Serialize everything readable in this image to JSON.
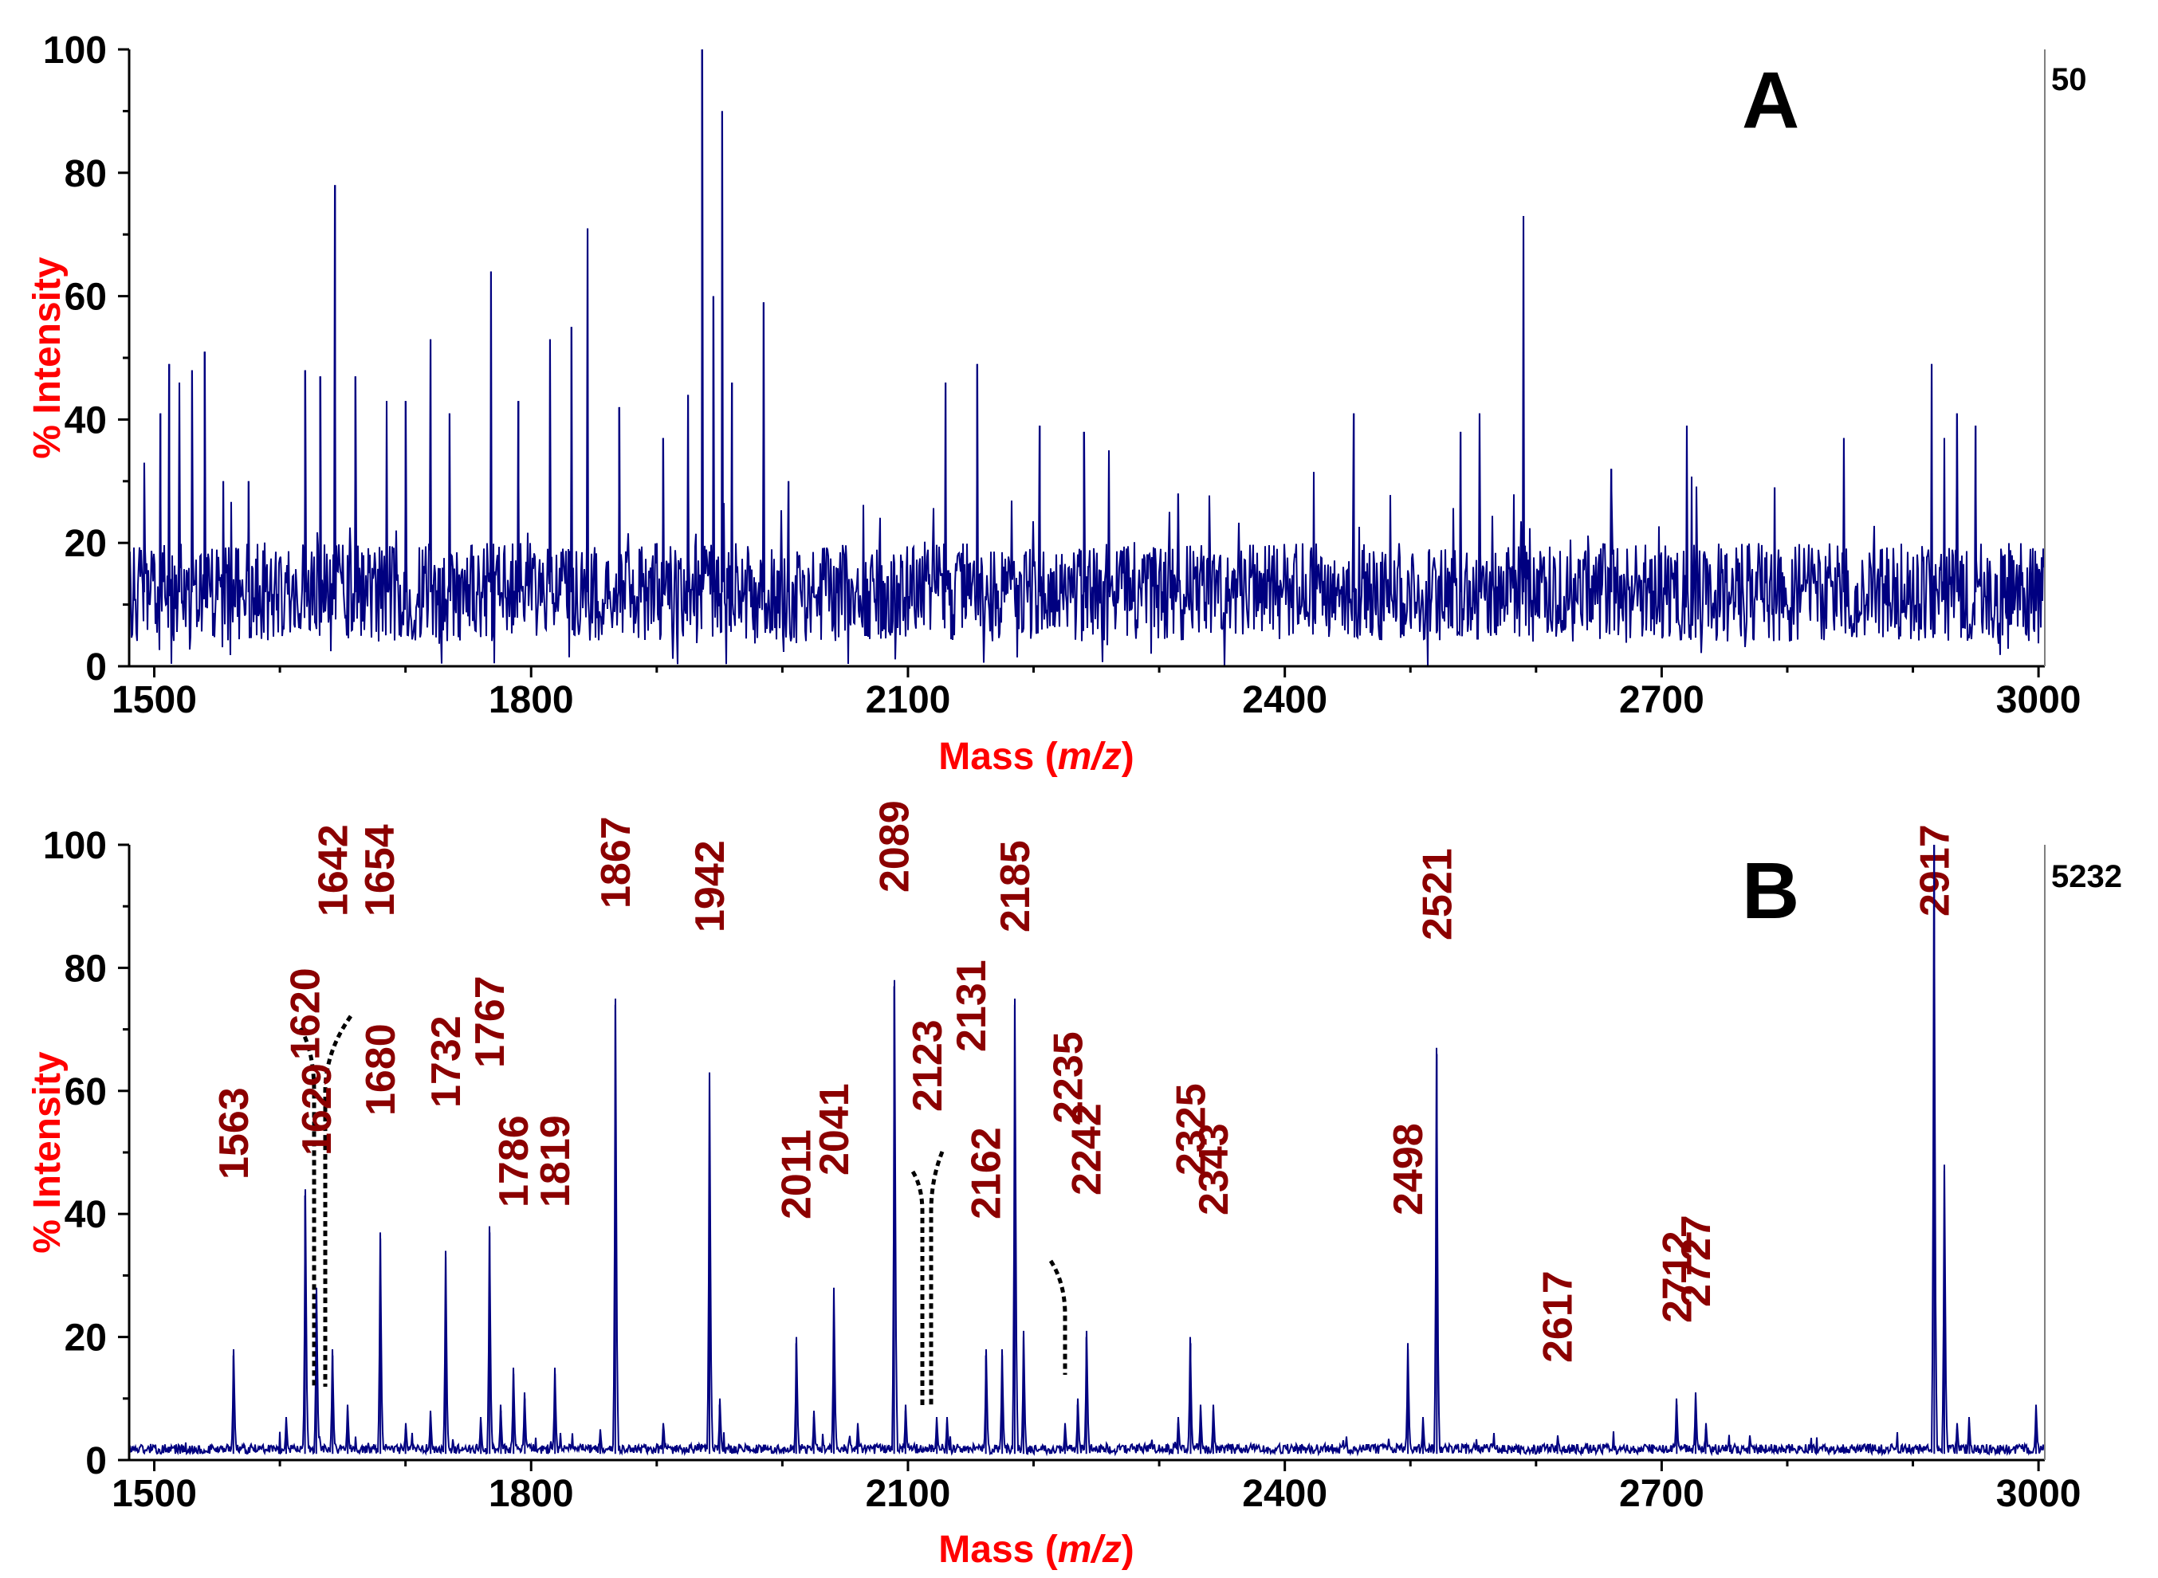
{
  "colors": {
    "spectrum": "#000080",
    "peak_label": "#8b0000",
    "axis_title": "#ff0000",
    "axis": "#000000",
    "right_border": "#808080"
  },
  "chart_data": [
    {
      "type": "line",
      "panel": "A",
      "max_count": "50",
      "xlabel_prefix": "Mass (",
      "xlabel_italic": "m/z",
      "xlabel_suffix": ")",
      "ylabel": "% Intensity",
      "xlim": [
        1480,
        3005
      ],
      "ylim": [
        0,
        100
      ],
      "xticks": [
        1500,
        1800,
        2100,
        2400,
        2700,
        3000
      ],
      "yticks": [
        0,
        20,
        40,
        60,
        80,
        100
      ],
      "noise_baseline": 12,
      "peaks": [
        {
          "x": 1492,
          "y": 33
        },
        {
          "x": 1505,
          "y": 41
        },
        {
          "x": 1512,
          "y": 49
        },
        {
          "x": 1520,
          "y": 46
        },
        {
          "x": 1530,
          "y": 48
        },
        {
          "x": 1540,
          "y": 51
        },
        {
          "x": 1555,
          "y": 30
        },
        {
          "x": 1575,
          "y": 30
        },
        {
          "x": 1620,
          "y": 48
        },
        {
          "x": 1632,
          "y": 47
        },
        {
          "x": 1644,
          "y": 78
        },
        {
          "x": 1660,
          "y": 47
        },
        {
          "x": 1685,
          "y": 43
        },
        {
          "x": 1700,
          "y": 43
        },
        {
          "x": 1720,
          "y": 53
        },
        {
          "x": 1735,
          "y": 41
        },
        {
          "x": 1768,
          "y": 64
        },
        {
          "x": 1790,
          "y": 43
        },
        {
          "x": 1815,
          "y": 53
        },
        {
          "x": 1832,
          "y": 55
        },
        {
          "x": 1845,
          "y": 71
        },
        {
          "x": 1870,
          "y": 42
        },
        {
          "x": 1905,
          "y": 37
        },
        {
          "x": 1925,
          "y": 44
        },
        {
          "x": 1936,
          "y": 100
        },
        {
          "x": 1945,
          "y": 60
        },
        {
          "x": 1952,
          "y": 90
        },
        {
          "x": 1960,
          "y": 46
        },
        {
          "x": 1985,
          "y": 59
        },
        {
          "x": 2005,
          "y": 30
        },
        {
          "x": 2130,
          "y": 46
        },
        {
          "x": 2155,
          "y": 49
        },
        {
          "x": 2205,
          "y": 39
        },
        {
          "x": 2240,
          "y": 38
        },
        {
          "x": 2260,
          "y": 35
        },
        {
          "x": 2315,
          "y": 28
        },
        {
          "x": 2455,
          "y": 41
        },
        {
          "x": 2540,
          "y": 38
        },
        {
          "x": 2555,
          "y": 41
        },
        {
          "x": 2590,
          "y": 73
        },
        {
          "x": 2660,
          "y": 32
        },
        {
          "x": 2720,
          "y": 39
        },
        {
          "x": 2790,
          "y": 29
        },
        {
          "x": 2845,
          "y": 37
        },
        {
          "x": 2915,
          "y": 49
        },
        {
          "x": 2925,
          "y": 37
        },
        {
          "x": 2935,
          "y": 41
        },
        {
          "x": 2950,
          "y": 39
        }
      ]
    },
    {
      "type": "line",
      "panel": "B",
      "max_count": "5232",
      "xlabel_prefix": "Mass (",
      "xlabel_italic": "m/z",
      "xlabel_suffix": ")",
      "ylabel": "% Intensity",
      "xlim": [
        1480,
        3005
      ],
      "ylim": [
        0,
        100
      ],
      "xticks": [
        1500,
        1800,
        2100,
        2400,
        2700,
        3000
      ],
      "yticks": [
        0,
        20,
        40,
        60,
        80,
        100
      ],
      "noise_baseline": 1,
      "peaks": [
        {
          "x": 1563,
          "y": 17,
          "label": "1563"
        },
        {
          "x": 1620,
          "y": 43,
          "label": "1620"
        },
        {
          "x": 1629,
          "y": 27,
          "label": "1629"
        },
        {
          "x": 1642,
          "y": 17,
          "label": "1642"
        },
        {
          "x": 1654,
          "y": 8,
          "label": "1654"
        },
        {
          "x": 1680,
          "y": 36,
          "label": "1680"
        },
        {
          "x": 1732,
          "y": 33,
          "label": "1732"
        },
        {
          "x": 1767,
          "y": 37,
          "label": "1767"
        },
        {
          "x": 1786,
          "y": 14,
          "label": "1786"
        },
        {
          "x": 1819,
          "y": 14,
          "label": "1819"
        },
        {
          "x": 1867,
          "y": 74,
          "label": "1867"
        },
        {
          "x": 1942,
          "y": 62,
          "label": "1942"
        },
        {
          "x": 2011,
          "y": 19,
          "label": "2011"
        },
        {
          "x": 2041,
          "y": 27,
          "label": "2041"
        },
        {
          "x": 2089,
          "y": 77,
          "label": "2089"
        },
        {
          "x": 2123,
          "y": 6,
          "label": "2123"
        },
        {
          "x": 2131,
          "y": 6,
          "label": "2131"
        },
        {
          "x": 2162,
          "y": 17,
          "label": "2162"
        },
        {
          "x": 2185,
          "y": 74,
          "label": "2185"
        },
        {
          "x": 2235,
          "y": 9,
          "label": "2235"
        },
        {
          "x": 2242,
          "y": 20,
          "label": "2242"
        },
        {
          "x": 2325,
          "y": 19,
          "label": "2325"
        },
        {
          "x": 2343,
          "y": 8,
          "label": "2343"
        },
        {
          "x": 2498,
          "y": 18,
          "label": "2498"
        },
        {
          "x": 2521,
          "y": 66,
          "label": "2521"
        },
        {
          "x": 2617,
          "y": 3,
          "label": "2617"
        },
        {
          "x": 2712,
          "y": 9,
          "label": "2712"
        },
        {
          "x": 2727,
          "y": 10,
          "label": "2727"
        },
        {
          "x": 2917,
          "y": 100,
          "label": "2917"
        },
        {
          "x": 1605,
          "y": 6
        },
        {
          "x": 1700,
          "y": 5
        },
        {
          "x": 1720,
          "y": 7
        },
        {
          "x": 1760,
          "y": 6
        },
        {
          "x": 1776,
          "y": 8
        },
        {
          "x": 1795,
          "y": 10
        },
        {
          "x": 1855,
          "y": 4
        },
        {
          "x": 1905,
          "y": 5
        },
        {
          "x": 1950,
          "y": 9
        },
        {
          "x": 2025,
          "y": 7
        },
        {
          "x": 2060,
          "y": 5
        },
        {
          "x": 2098,
          "y": 8
        },
        {
          "x": 2175,
          "y": 17
        },
        {
          "x": 2192,
          "y": 20
        },
        {
          "x": 2225,
          "y": 5
        },
        {
          "x": 2315,
          "y": 6
        },
        {
          "x": 2333,
          "y": 8
        },
        {
          "x": 2510,
          "y": 6
        },
        {
          "x": 2735,
          "y": 5
        },
        {
          "x": 2770,
          "y": 3
        },
        {
          "x": 2925,
          "y": 47
        },
        {
          "x": 2935,
          "y": 5
        },
        {
          "x": 2945,
          "y": 6
        },
        {
          "x": 2998,
          "y": 8
        }
      ]
    }
  ]
}
